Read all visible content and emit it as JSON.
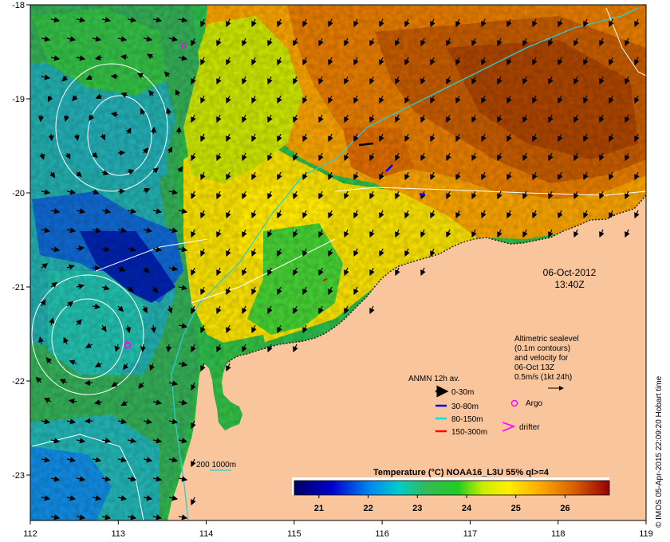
{
  "map": {
    "lon_ticks": [
      "112",
      "113",
      "114",
      "115",
      "116",
      "117",
      "118",
      "119"
    ],
    "lat_ticks": [
      "-18",
      "-19",
      "-20",
      "-21",
      "-22",
      "-23"
    ],
    "land_color": "#f9c59c",
    "timestamp": {
      "date": "06-Oct-2012",
      "time": "13:40Z"
    },
    "altimetry_note": [
      "Altimetric sealevel",
      "(0.1m contours)",
      "and velocity for",
      "06-Oct 13Z",
      "0.5m/s (1kt 24h)"
    ],
    "anmn_legend": {
      "title": "ANMN 12h av.",
      "items": [
        {
          "label": "0-30m",
          "color": "#000000"
        },
        {
          "label": "30-80m",
          "color": "#0000ff"
        },
        {
          "label": "80-150m",
          "color": "#00e0e0"
        },
        {
          "label": "150-300m",
          "color": "#ff0000"
        }
      ]
    },
    "markers": {
      "argo": "Argo",
      "drifter": "drifter",
      "argo_color": "#ff00ff"
    },
    "isobath_label": "200  1000m",
    "colorbar": {
      "title": "Temperature (°C) NOAA16_L3U 55% ql>=4",
      "ticks": [
        "21",
        "22",
        "23",
        "24",
        "25",
        "26"
      ],
      "range": [
        20.5,
        26.9
      ]
    },
    "credit": "© IMOS 05-Apr-2015 22:09:20 Hobart time"
  }
}
